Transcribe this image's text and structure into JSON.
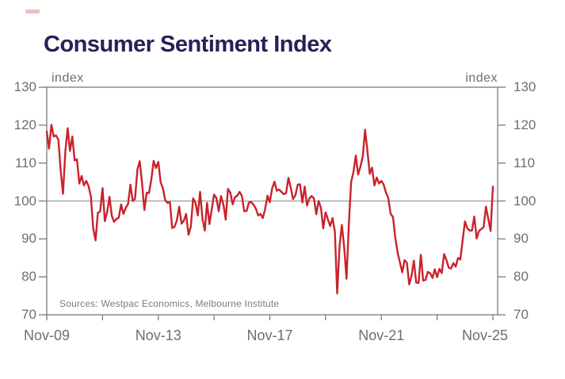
{
  "title": "Consumer Sentiment Index",
  "decoration": {
    "top_left_mark_color": "#f2bcbc"
  },
  "source_note": "Sources: Westpac Economics, Melbourne Institute",
  "chart_data": {
    "type": "line",
    "title": "Consumer Sentiment Index",
    "unit_label_left": "index",
    "unit_label_right": "index",
    "ylim": [
      70,
      130
    ],
    "y_ticks": [
      130,
      120,
      110,
      100,
      90,
      80,
      70
    ],
    "x_tick_labels": [
      "Nov-09",
      "Nov-13",
      "Nov-17",
      "Nov-21",
      "Nov-25"
    ],
    "x_minor_tick_count": 9,
    "reference_line": 100,
    "grid": "reference-line-only",
    "legend": "none",
    "line_color": "#c8232b",
    "axis_color": "#7a7a7a",
    "label_color": "#6e6e6e",
    "x_start": "Nov-2009",
    "x_end": "Nov-2025",
    "frequency": "monthly",
    "values": [
      118.3,
      113.8,
      120.1,
      117.0,
      117.3,
      116.1,
      108.0,
      101.9,
      113.1,
      119.2,
      113.2,
      117.0,
      110.7,
      111.0,
      104.6,
      106.6,
      104.1,
      105.3,
      103.9,
      101.2,
      92.8,
      89.6,
      96.9,
      97.2,
      103.4,
      94.7,
      97.1,
      101.1,
      96.1,
      94.5,
      95.3,
      95.6,
      99.1,
      96.6,
      98.2,
      99.2,
      104.3,
      100.0,
      100.6,
      108.3,
      110.5,
      104.9,
      97.6,
      102.2,
      102.1,
      105.7,
      110.6,
      108.7,
      110.3,
      105.0,
      103.3,
      100.2,
      99.5,
      99.7,
      92.9,
      93.2,
      94.9,
      98.5,
      94.0,
      94.8,
      96.6,
      91.1,
      93.2,
      100.7,
      99.5,
      96.2,
      102.4,
      95.3,
      92.2,
      99.5,
      93.9,
      97.8,
      101.7,
      100.8,
      97.3,
      101.3,
      99.1,
      95.1,
      103.2,
      102.2,
      99.1,
      101.0,
      101.4,
      102.4,
      101.3,
      97.3,
      97.4,
      99.6,
      99.7,
      99.0,
      98.0,
      96.2,
      96.6,
      95.5,
      97.9,
      101.4,
      99.7,
      103.3,
      105.1,
      102.7,
      103.0,
      102.4,
      101.8,
      102.1,
      106.1,
      103.6,
      100.5,
      101.5,
      104.3,
      104.4,
      99.6,
      103.8,
      98.8,
      100.7,
      101.3,
      100.7,
      96.5,
      100.0,
      98.2,
      92.8,
      97.0,
      95.1,
      93.4,
      95.5,
      91.9,
      75.6,
      88.1,
      93.7,
      87.9,
      79.5,
      93.8,
      105.0,
      107.7,
      112.0,
      107.0,
      109.1,
      111.8,
      118.8,
      113.1,
      107.2,
      108.8,
      104.1,
      106.2,
      104.6,
      105.3,
      104.3,
      102.2,
      100.8,
      96.6,
      95.8,
      90.4,
      86.4,
      83.8,
      81.2,
      84.4,
      83.7,
      78.0,
      80.3,
      84.3,
      78.5,
      78.4,
      85.8,
      79.0,
      79.2,
      81.3,
      81.0,
      79.7,
      82.0,
      79.9,
      82.1,
      81.0,
      86.0,
      84.4,
      82.4,
      82.2,
      83.6,
      82.7,
      85.0,
      84.6,
      89.8,
      94.6,
      92.8,
      92.2,
      92.2,
      95.9,
      90.1,
      92.1,
      92.6,
      93.1,
      98.5,
      95.4,
      92.1,
      103.8
    ]
  }
}
